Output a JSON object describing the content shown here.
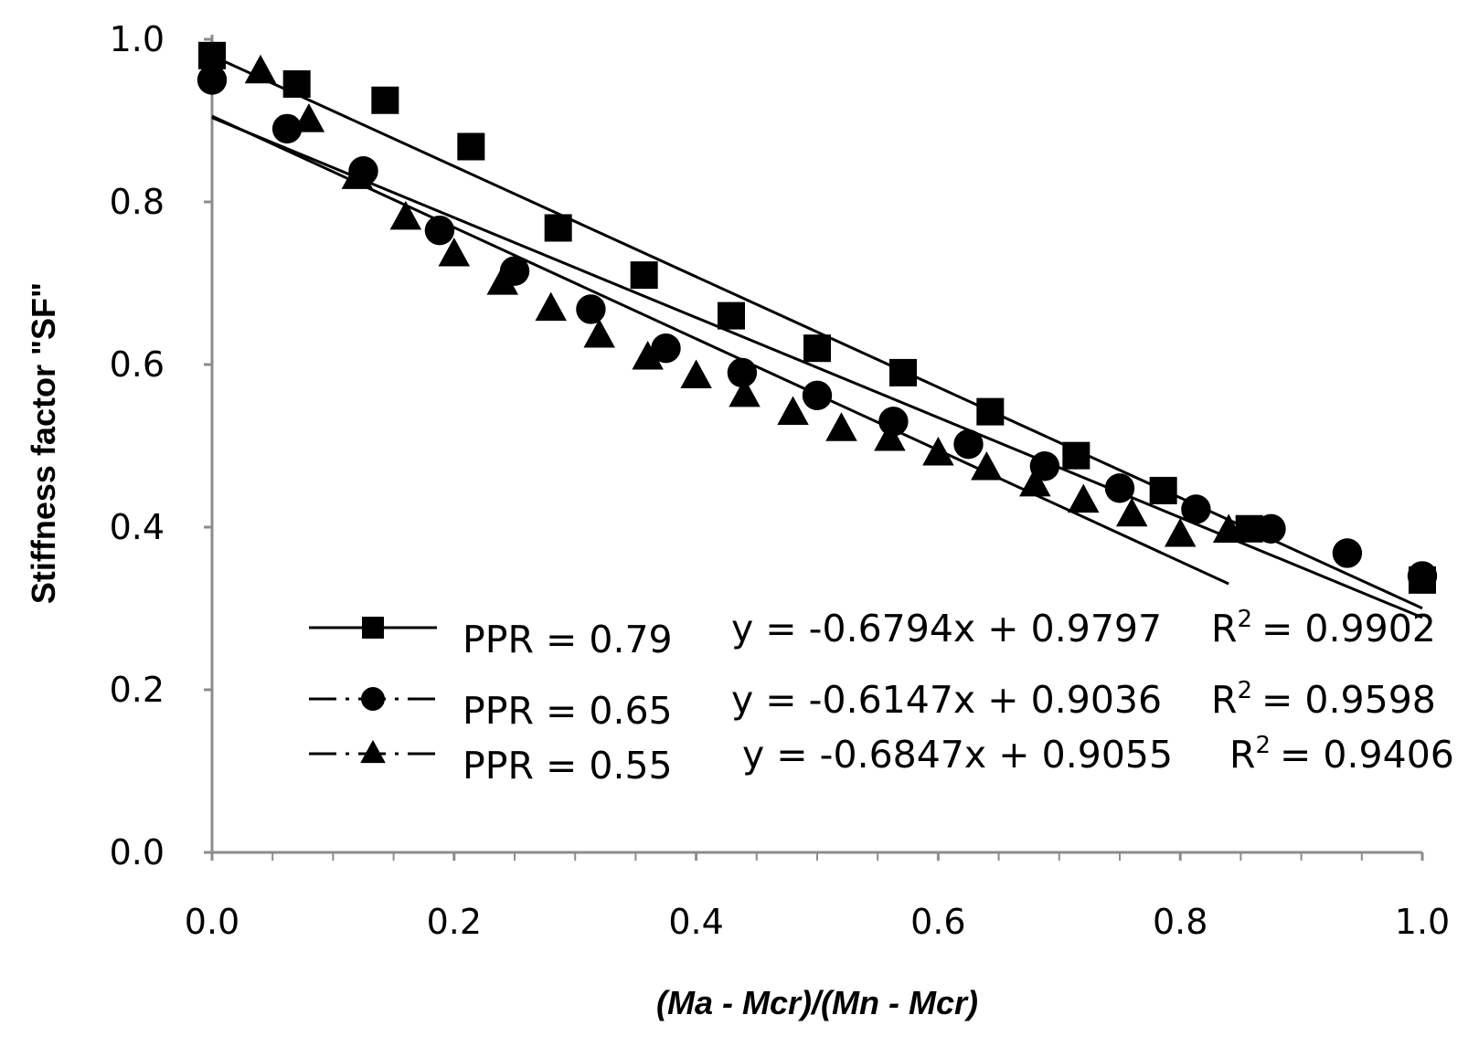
{
  "chart_data": {
    "type": "scatter",
    "title": "",
    "xlabel": "(Ma - Mcr)/(Mn - Mcr)",
    "ylabel": "Stiffness factor \"SF\"",
    "xlim": [
      0,
      1
    ],
    "ylim": [
      0,
      1
    ],
    "xticks": [
      "0.0",
      "0.2",
      "0.4",
      "0.6",
      "0.8",
      "1.0"
    ],
    "yticks": [
      "0.0",
      "0.2",
      "0.4",
      "0.6",
      "0.8",
      "1.0"
    ],
    "grid": false,
    "legend_position": "bottom-right",
    "series": [
      {
        "name": "PPR = 0.79",
        "marker": "square",
        "line_style": "solid",
        "equation": "y = -0.6794x + 0.9797",
        "r2_prefix": "R",
        "r2_sup": "2",
        "r2_value": "= 0.9902",
        "slope": -0.6794,
        "intercept": 0.9797,
        "trend_x": [
          0,
          1
        ],
        "points": [
          [
            0.0,
            0.98
          ],
          [
            0.07,
            0.945
          ],
          [
            0.143,
            0.925
          ],
          [
            0.214,
            0.868
          ],
          [
            0.286,
            0.768
          ],
          [
            0.357,
            0.71
          ],
          [
            0.429,
            0.66
          ],
          [
            0.5,
            0.62
          ],
          [
            0.571,
            0.59
          ],
          [
            0.643,
            0.542
          ],
          [
            0.714,
            0.488
          ],
          [
            0.786,
            0.445
          ],
          [
            0.857,
            0.398
          ],
          [
            1.0,
            0.335
          ]
        ]
      },
      {
        "name": "PPR = 0.65",
        "marker": "circle",
        "line_style": "dash-dot",
        "equation": "y = -0.6147x + 0.9036",
        "r2_prefix": "R",
        "r2_sup": "2",
        "r2_value": "= 0.9598",
        "slope": -0.6147,
        "intercept": 0.9036,
        "trend_x": [
          0,
          1
        ],
        "points": [
          [
            0.0,
            0.95
          ],
          [
            0.062,
            0.89
          ],
          [
            0.125,
            0.838
          ],
          [
            0.188,
            0.765
          ],
          [
            0.25,
            0.715
          ],
          [
            0.313,
            0.668
          ],
          [
            0.375,
            0.62
          ],
          [
            0.438,
            0.59
          ],
          [
            0.5,
            0.562
          ],
          [
            0.563,
            0.53
          ],
          [
            0.625,
            0.502
          ],
          [
            0.688,
            0.475
          ],
          [
            0.75,
            0.448
          ],
          [
            0.813,
            0.422
          ],
          [
            0.875,
            0.398
          ],
          [
            0.938,
            0.368
          ],
          [
            1.0,
            0.34
          ]
        ]
      },
      {
        "name": "PPR = 0.55",
        "marker": "triangle",
        "line_style": "dash-dot",
        "equation": "y = -0.6847x + 0.9055",
        "r2_prefix": "R",
        "r2_sup": "2",
        "r2_value": "= 0.9406",
        "slope": -0.6847,
        "intercept": 0.9055,
        "trend_x": [
          0,
          0.84
        ],
        "points": [
          [
            0.04,
            0.96
          ],
          [
            0.08,
            0.9
          ],
          [
            0.12,
            0.83
          ],
          [
            0.16,
            0.78
          ],
          [
            0.2,
            0.735
          ],
          [
            0.24,
            0.7
          ],
          [
            0.28,
            0.668
          ],
          [
            0.32,
            0.635
          ],
          [
            0.36,
            0.608
          ],
          [
            0.4,
            0.585
          ],
          [
            0.44,
            0.562
          ],
          [
            0.48,
            0.54
          ],
          [
            0.52,
            0.52
          ],
          [
            0.56,
            0.508
          ],
          [
            0.6,
            0.49
          ],
          [
            0.64,
            0.472
          ],
          [
            0.68,
            0.452
          ],
          [
            0.72,
            0.432
          ],
          [
            0.76,
            0.415
          ],
          [
            0.8,
            0.39
          ],
          [
            0.84,
            0.395
          ]
        ]
      }
    ]
  }
}
